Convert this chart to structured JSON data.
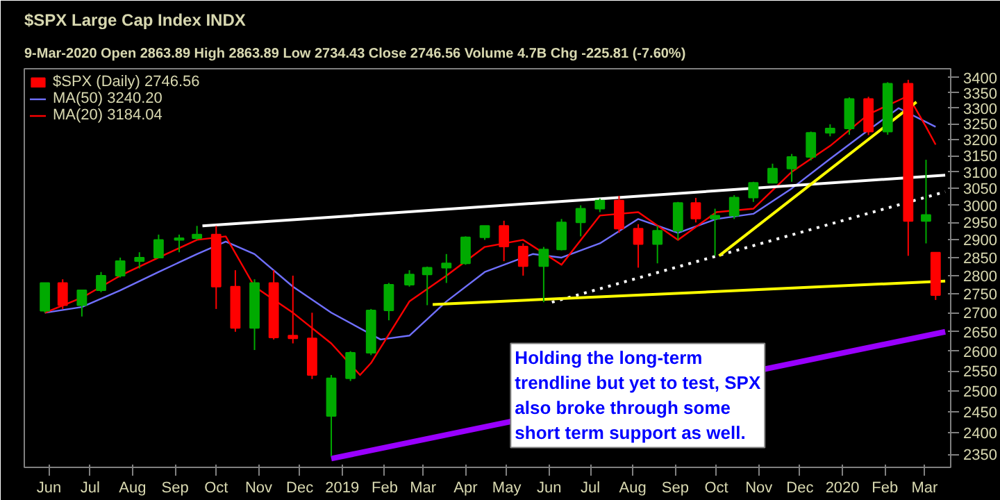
{
  "chart_data": {
    "type": "candlestick",
    "title": "$SPX Large Cap Index INDX",
    "subtitle": "9-Mar-2020   Open 2863.89  High 2863.89  Low 2734.43  Close 2746.56  Volume 4.7B  Chg -225.81 (-7.60%)",
    "series": [
      {
        "name": "$SPX (Daily) 2746.56",
        "x": [
          "2018-05-29",
          "2018-06-11",
          "2018-06-25",
          "2018-07-09",
          "2018-07-23",
          "2018-08-06",
          "2018-08-20",
          "2018-09-04",
          "2018-09-17",
          "2018-10-01",
          "2018-10-15",
          "2018-10-29",
          "2018-11-12",
          "2018-11-26",
          "2018-12-10",
          "2018-12-24",
          "2019-01-07",
          "2019-01-22",
          "2019-02-04",
          "2019-02-19",
          "2019-03-04",
          "2019-03-18",
          "2019-04-01",
          "2019-04-15",
          "2019-04-29",
          "2019-05-13",
          "2019-05-28",
          "2019-06-10",
          "2019-06-24",
          "2019-07-08",
          "2019-07-22",
          "2019-08-05",
          "2019-08-19",
          "2019-09-03",
          "2019-09-16",
          "2019-09-30",
          "2019-10-14",
          "2019-10-28",
          "2019-11-11",
          "2019-11-25",
          "2019-12-09",
          "2019-12-23",
          "2020-01-06",
          "2020-01-20",
          "2020-02-03",
          "2020-02-18",
          "2020-03-02",
          "2020-03-09"
        ],
        "ohlc": [
          [
            2705,
            2780,
            2700,
            2780
          ],
          [
            2780,
            2790,
            2710,
            2720
          ],
          [
            2720,
            2760,
            2690,
            2760
          ],
          [
            2760,
            2810,
            2755,
            2800
          ],
          [
            2800,
            2850,
            2795,
            2840
          ],
          [
            2840,
            2865,
            2820,
            2850
          ],
          [
            2850,
            2915,
            2850,
            2900
          ],
          [
            2900,
            2915,
            2865,
            2905
          ],
          [
            2905,
            2940,
            2900,
            2915
          ],
          [
            2915,
            2940,
            2710,
            2770
          ],
          [
            2770,
            2815,
            2650,
            2660
          ],
          [
            2660,
            2790,
            2603,
            2780
          ],
          [
            2780,
            2815,
            2630,
            2635
          ],
          [
            2640,
            2800,
            2620,
            2633
          ],
          [
            2633,
            2700,
            2530,
            2540
          ],
          [
            2440,
            2540,
            2346,
            2532
          ],
          [
            2532,
            2600,
            2525,
            2596
          ],
          [
            2596,
            2710,
            2590,
            2706
          ],
          [
            2706,
            2780,
            2680,
            2775
          ],
          [
            2775,
            2815,
            2770,
            2803
          ],
          [
            2803,
            2825,
            2720,
            2822
          ],
          [
            2822,
            2860,
            2780,
            2834
          ],
          [
            2834,
            2910,
            2830,
            2907
          ],
          [
            2907,
            2940,
            2900,
            2940
          ],
          [
            2940,
            2955,
            2840,
            2881
          ],
          [
            2881,
            2890,
            2800,
            2826
          ],
          [
            2826,
            2880,
            2728,
            2873
          ],
          [
            2873,
            2960,
            2870,
            2950
          ],
          [
            2950,
            3000,
            2910,
            2990
          ],
          [
            2990,
            3020,
            2980,
            3014
          ],
          [
            3014,
            3028,
            2920,
            2932
          ],
          [
            2932,
            2945,
            2822,
            2888
          ],
          [
            2888,
            2940,
            2834,
            2926
          ],
          [
            2926,
            3010,
            2900,
            3007
          ],
          [
            3007,
            3022,
            2950,
            2961
          ],
          [
            2961,
            2990,
            2855,
            2970
          ],
          [
            2970,
            3030,
            2960,
            3023
          ],
          [
            3023,
            3070,
            3010,
            3067
          ],
          [
            3067,
            3125,
            3065,
            3110
          ],
          [
            3110,
            3155,
            3070,
            3146
          ],
          [
            3146,
            3225,
            3135,
            3221
          ],
          [
            3221,
            3248,
            3210,
            3235
          ],
          [
            3235,
            3335,
            3215,
            3330
          ],
          [
            3330,
            3337,
            3214,
            3225
          ],
          [
            3225,
            3385,
            3215,
            3380
          ],
          [
            3380,
            3393,
            2855,
            2954
          ],
          [
            2954,
            3137,
            2890,
            2972
          ],
          [
            2864,
            2864,
            2734,
            2747
          ]
        ],
        "colors": [
          "#00aa00",
          "#ff0000",
          "#00aa00",
          "#00aa00",
          "#00aa00",
          "#00aa00",
          "#00aa00",
          "#00aa00",
          "#00aa00",
          "#ff0000",
          "#ff0000",
          "#00aa00",
          "#ff0000",
          "#ff0000",
          "#ff0000",
          "#00aa00",
          "#00aa00",
          "#00aa00",
          "#00aa00",
          "#00aa00",
          "#00aa00",
          "#00aa00",
          "#00aa00",
          "#00aa00",
          "#ff0000",
          "#ff0000",
          "#00aa00",
          "#00aa00",
          "#00aa00",
          "#00aa00",
          "#ff0000",
          "#ff0000",
          "#00aa00",
          "#00aa00",
          "#ff0000",
          "#00aa00",
          "#00aa00",
          "#00aa00",
          "#00aa00",
          "#00aa00",
          "#00aa00",
          "#00aa00",
          "#00aa00",
          "#ff0000",
          "#00aa00",
          "#ff0000",
          "#00aa00",
          "#ff0000"
        ]
      },
      {
        "type": "line",
        "name": "MA(50) 3240.20",
        "color": "#7070ff",
        "x": [
          "2018-05-29",
          "2018-06-25",
          "2018-07-23",
          "2018-08-20",
          "2018-09-17",
          "2018-10-08",
          "2018-10-29",
          "2018-11-26",
          "2018-12-24",
          "2019-01-29",
          "2019-02-19",
          "2019-03-18",
          "2019-04-15",
          "2019-05-20",
          "2019-06-10",
          "2019-07-08",
          "2019-08-05",
          "2019-09-03",
          "2019-10-01",
          "2019-10-28",
          "2019-11-25",
          "2019-12-23",
          "2020-01-20",
          "2020-02-11",
          "2020-03-09"
        ],
        "values": [
          2700,
          2715,
          2760,
          2810,
          2860,
          2895,
          2860,
          2770,
          2700,
          2630,
          2640,
          2730,
          2810,
          2860,
          2850,
          2890,
          2960,
          2920,
          2960,
          2975,
          3050,
          3140,
          3230,
          3300,
          3240
        ]
      },
      {
        "type": "line",
        "name": "MA(20) 3184.04",
        "color": "#ff0000",
        "x": [
          "2018-05-29",
          "2018-06-25",
          "2018-07-23",
          "2018-08-20",
          "2018-09-17",
          "2018-10-08",
          "2018-10-29",
          "2018-11-26",
          "2018-12-24",
          "2019-01-14",
          "2019-01-22",
          "2019-02-19",
          "2019-03-18",
          "2019-04-15",
          "2019-05-13",
          "2019-06-10",
          "2019-07-08",
          "2019-08-05",
          "2019-09-03",
          "2019-10-01",
          "2019-10-28",
          "2019-11-25",
          "2019-12-23",
          "2020-01-20",
          "2020-02-18",
          "2020-03-02",
          "2020-03-09"
        ],
        "values": [
          2700,
          2740,
          2800,
          2850,
          2900,
          2910,
          2770,
          2700,
          2620,
          2540,
          2570,
          2730,
          2800,
          2880,
          2900,
          2830,
          2970,
          2980,
          2900,
          2980,
          2990,
          3100,
          3180,
          3280,
          3340,
          3240,
          3184
        ]
      },
      {
        "type": "line",
        "color": "#ffffff",
        "x": [
          "2018-09-21",
          "2020-03-16"
        ],
        "values": [
          2940,
          3090
        ]
      },
      {
        "type": "line",
        "color": "#ffffff",
        "line_style": "dotted",
        "x": [
          "2019-06-03",
          "2020-03-16"
        ],
        "values": [
          2728,
          3040
        ]
      },
      {
        "type": "line",
        "color": "#ffff00",
        "x": [
          "2019-03-08",
          "2020-03-16"
        ],
        "values": [
          2722,
          2785
        ]
      },
      {
        "type": "line",
        "color": "#ffff00",
        "x": [
          "2019-10-03",
          "2020-02-24"
        ],
        "values": [
          2855,
          3320
        ]
      },
      {
        "type": "line",
        "color": "#9900ff",
        "x": [
          "2018-12-24",
          "2020-03-16"
        ],
        "values": [
          2340,
          2650
        ]
      }
    ],
    "log": true,
    "legend": "top left",
    "xlim": [
      "2018-05-14",
      "2020-03-20"
    ],
    "xticks": [
      {
        "value": "2018-06-01",
        "label": "Jun"
      },
      {
        "value": "2018-07-01",
        "label": "Jul"
      },
      {
        "value": "2018-08-01",
        "label": "Aug"
      },
      {
        "value": "2018-09-01",
        "label": "Sep"
      },
      {
        "value": "2018-10-01",
        "label": "Oct"
      },
      {
        "value": "2018-11-01",
        "label": "Nov"
      },
      {
        "value": "2018-12-01",
        "label": "Dec"
      },
      {
        "value": "2019-01-01",
        "label": "2019"
      },
      {
        "value": "2019-02-01",
        "label": "Feb"
      },
      {
        "value": "2019-03-01",
        "label": "Mar"
      },
      {
        "value": "2019-04-01",
        "label": "Apr"
      },
      {
        "value": "2019-05-01",
        "label": "May"
      },
      {
        "value": "2019-06-01",
        "label": "Jun"
      },
      {
        "value": "2019-07-01",
        "label": "Jul"
      },
      {
        "value": "2019-08-01",
        "label": "Aug"
      },
      {
        "value": "2019-09-01",
        "label": "Sep"
      },
      {
        "value": "2019-10-01",
        "label": "Oct"
      },
      {
        "value": "2019-11-01",
        "label": "Nov"
      },
      {
        "value": "2019-12-01",
        "label": "Dec"
      },
      {
        "value": "2020-01-01",
        "label": "2020"
      },
      {
        "value": "2020-02-01",
        "label": "Feb"
      },
      {
        "value": "2020-03-01",
        "label": "Mar"
      }
    ],
    "ylim": [
      2320,
      3430
    ],
    "yticks": [
      2350,
      2400,
      2450,
      2500,
      2550,
      2600,
      2650,
      2700,
      2750,
      2800,
      2850,
      2900,
      2950,
      3000,
      3050,
      3100,
      3150,
      3200,
      3250,
      3300,
      3350,
      3400
    ],
    "annotations": [
      "Holding the long-term\ntrendline but yet to test, SPX\nalso broke through some\nshort term support as well."
    ]
  }
}
